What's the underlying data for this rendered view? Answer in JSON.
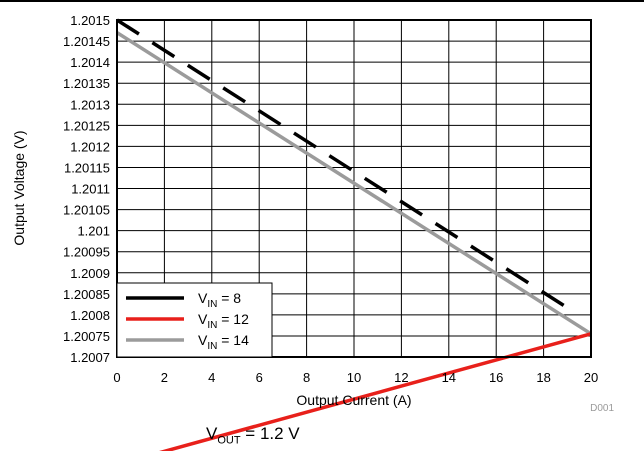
{
  "chart_data": {
    "type": "line",
    "xlabel": "Output Current (A)",
    "ylabel": "Output Voltage (V)",
    "xlim": [
      0,
      20
    ],
    "ylim": [
      1.2007,
      1.2015
    ],
    "x_ticks": [
      "0",
      "2",
      "4",
      "6",
      "8",
      "10",
      "12",
      "14",
      "16",
      "18",
      "20"
    ],
    "y_ticks": [
      "1.2007",
      "1.20075",
      "1.2008",
      "1.20085",
      "1.2009",
      "1.20095",
      "1.201",
      "1.20105",
      "1.2011",
      "1.20115",
      "1.2012",
      "1.20125",
      "1.2013",
      "1.20135",
      "1.2014",
      "1.20145",
      "1.2015"
    ],
    "grid": true,
    "legend_position": "bottom-left",
    "series": [
      {
        "name": "VIN = 8",
        "label_main": "V",
        "label_sub": "IN",
        "label_rest": " = 8",
        "color": "#000000",
        "dashed": true,
        "x": [
          0,
          19.2
        ],
        "y": [
          1.2015,
          1.20081
        ]
      },
      {
        "name": "VIN = 12",
        "label_main": "V",
        "label_sub": "IN",
        "label_rest": " = 12",
        "color": "#e8201b",
        "dashed": false,
        "x": [
          0,
          20
        ],
        "y": [
          1.200445,
          1.200755
        ]
      },
      {
        "name": "VIN = 14",
        "label_main": "V",
        "label_sub": "IN",
        "label_rest": " = 14",
        "color": "#9b9b9b",
        "dashed": false,
        "x": [
          0,
          20
        ],
        "y": [
          1.20147,
          1.200755
        ]
      }
    ],
    "corner_id": "D001"
  },
  "caption": {
    "main": "V",
    "sub": "OUT",
    "rest": " = 1.2 V"
  }
}
